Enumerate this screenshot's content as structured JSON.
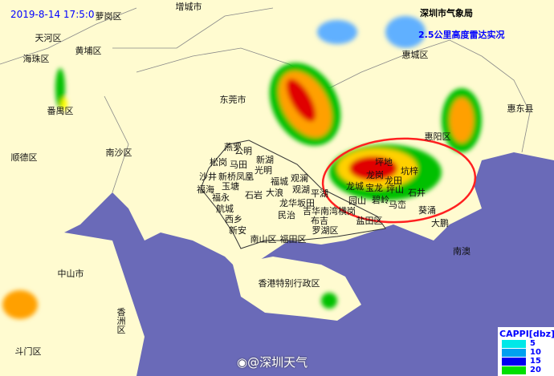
{
  "header": {
    "timestamp": "2019-8-14  17:5:0",
    "agency": "深圳市气象局",
    "product": "2.5公里高度雷达实况"
  },
  "colors": {
    "land": "#fffbd0",
    "sea": "#6a6ab8",
    "timestamp": "#0000ff",
    "circle": "#ff2020"
  },
  "labels": [
    "增城市",
    "萝岗区",
    "天河区",
    "黄埔区",
    "海珠区",
    "番禺区",
    "东莞市",
    "惠城区",
    "惠东县",
    "顺德区",
    "南沙区",
    "中山市",
    "香洲区",
    "斗门区",
    "香港特别行政区",
    "惠阳区",
    "大鹏",
    "南澳",
    "燕罗",
    "公明",
    "松岗",
    "马田",
    "新湖",
    "光明",
    "沙井",
    "新桥",
    "凤凰",
    "福城",
    "观澜",
    "福海",
    "玉塘",
    "石岩",
    "大浪",
    "观湖",
    "平湖",
    "福永",
    "龙华坂田",
    "航城",
    "吉华南湾横岗",
    "民治",
    "西乡",
    "布吉",
    "新安",
    "罗湖区",
    "南山区",
    "福田区",
    "坪地",
    "龙岗",
    "坑梓",
    "龙田",
    "龙城",
    "宝龙",
    "坪山",
    "石井",
    "园山",
    "碧岭",
    "马峦",
    "盐田区",
    "葵涌"
  ],
  "legend": {
    "title": "CAPPI[dbz]",
    "items": [
      {
        "value": "5",
        "color": "#00e8e8"
      },
      {
        "value": "10",
        "color": "#00a0f0"
      },
      {
        "value": "15",
        "color": "#0000f0"
      },
      {
        "value": "20",
        "color": "#00e000"
      }
    ]
  },
  "watermark": "@深圳天气"
}
